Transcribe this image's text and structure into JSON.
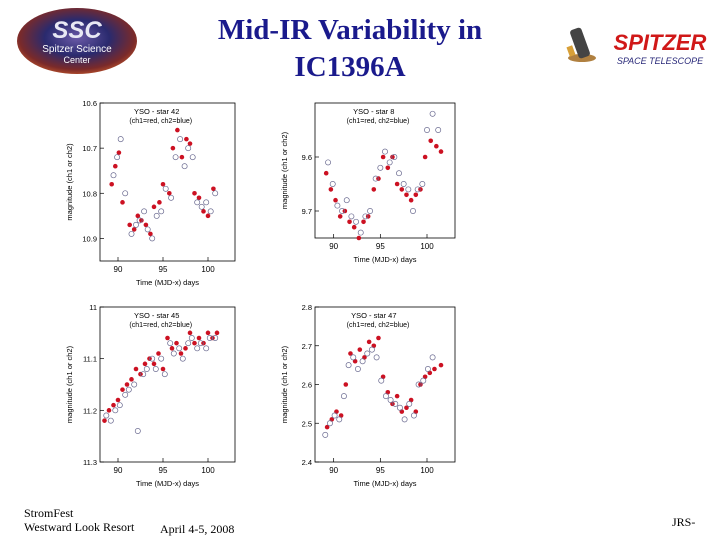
{
  "slide": {
    "title_line1": "Mid-IR Variability in",
    "title_line2": "IC1396A",
    "footer_event": "StromFest",
    "footer_venue": "Westward Look Resort",
    "footer_dates": "April 4-5, 2008",
    "footer_author": "JRS-"
  },
  "logos": {
    "ssc_abbrev": "SSC",
    "ssc_line1": "Spitzer Science",
    "ssc_line2": "Center",
    "spitzer_name": "SPITZER",
    "spitzer_sub": "SPACE TELESCOPE"
  },
  "colors": {
    "title": "#1a1a8c",
    "ch1": "#cc1122",
    "ch2": "#6a6a90"
  },
  "chart_data": [
    {
      "type": "scatter",
      "title": "YSO - star 42",
      "legend_note": "(ch1=red, ch2=blue)",
      "xlabel": "Time (MJD-x) days",
      "ylabel": "magnitude (ch1 or ch2)",
      "xlim": [
        88,
        103
      ],
      "ylim": [
        10.6,
        10.95
      ],
      "y_inverted": true,
      "xticks": [
        90,
        95,
        100
      ],
      "xtick_labels": [
        "90",
        "95",
        "100"
      ],
      "yticks": [
        10.6,
        10.7,
        10.8,
        10.9
      ],
      "ytick_labels": [
        "10.6",
        "10.7",
        "10.8",
        "10.9"
      ],
      "series": [
        {
          "name": "ch1",
          "x": [
            89.3,
            89.7,
            90.1,
            90.5,
            91.3,
            91.8,
            92.2,
            92.6,
            93.1,
            93.6,
            94.0,
            94.6,
            95.0,
            95.7,
            96.1,
            96.6,
            97.1,
            97.6,
            98.0,
            98.5,
            99.0,
            99.5,
            100.0,
            100.6
          ],
          "y": [
            10.78,
            10.74,
            10.71,
            10.82,
            10.87,
            10.88,
            10.85,
            10.86,
            10.87,
            10.89,
            10.83,
            10.82,
            10.78,
            10.8,
            10.7,
            10.66,
            10.72,
            10.68,
            10.69,
            10.8,
            10.81,
            10.84,
            10.85,
            10.79
          ]
        },
        {
          "name": "ch2",
          "x": [
            89.5,
            89.9,
            90.3,
            90.8,
            91.5,
            92.0,
            92.4,
            92.9,
            93.3,
            93.8,
            94.3,
            94.8,
            95.3,
            95.9,
            96.4,
            96.9,
            97.4,
            97.8,
            98.3,
            98.8,
            99.3,
            99.8,
            100.3,
            100.8
          ],
          "y": [
            10.76,
            10.72,
            10.68,
            10.8,
            10.89,
            10.87,
            10.86,
            10.84,
            10.88,
            10.9,
            10.85,
            10.84,
            10.79,
            10.81,
            10.72,
            10.68,
            10.74,
            10.7,
            10.72,
            10.82,
            10.83,
            10.82,
            10.84,
            10.8
          ]
        }
      ]
    },
    {
      "type": "scatter",
      "title": "YSO - star 8",
      "legend_note": "(ch1=red, ch2=blue)",
      "xlabel": "Time (MJD-x) days",
      "ylabel": "magnitude (ch1 or ch2)",
      "xlim": [
        88,
        103
      ],
      "ylim": [
        9.5,
        9.75
      ],
      "y_inverted": true,
      "xticks": [
        90,
        95,
        100
      ],
      "xtick_labels": [
        "90",
        "95",
        "100"
      ],
      "yticks": [
        9.6,
        9.7
      ],
      "ytick_labels": [
        "9.6",
        "9.7"
      ],
      "series": [
        {
          "name": "ch1",
          "x": [
            89.2,
            89.7,
            90.2,
            90.7,
            91.2,
            91.7,
            92.2,
            92.7,
            93.2,
            93.7,
            94.3,
            94.8,
            95.3,
            95.8,
            96.3,
            96.8,
            97.3,
            97.8,
            98.3,
            98.8,
            99.3,
            99.8,
            100.4,
            101.0,
            101.5
          ],
          "y": [
            9.63,
            9.66,
            9.68,
            9.71,
            9.7,
            9.72,
            9.73,
            9.75,
            9.72,
            9.71,
            9.66,
            9.64,
            9.6,
            9.62,
            9.6,
            9.65,
            9.66,
            9.67,
            9.68,
            9.67,
            9.66,
            9.6,
            9.57,
            9.58,
            9.59
          ]
        },
        {
          "name": "ch2",
          "x": [
            89.4,
            89.9,
            90.4,
            90.9,
            91.4,
            91.9,
            92.4,
            92.9,
            93.4,
            93.9,
            94.5,
            95.0,
            95.5,
            96.0,
            96.5,
            97.0,
            97.5,
            98.0,
            98.5,
            99.0,
            99.5,
            100.0,
            100.6,
            101.2
          ],
          "y": [
            9.61,
            9.65,
            9.69,
            9.7,
            9.68,
            9.71,
            9.72,
            9.74,
            9.71,
            9.7,
            9.64,
            9.62,
            9.59,
            9.61,
            9.6,
            9.63,
            9.65,
            9.66,
            9.7,
            9.66,
            9.65,
            9.55,
            9.52,
            9.55
          ]
        }
      ]
    },
    {
      "type": "scatter",
      "title": "YSO - star 45",
      "legend_note": "(ch1=red, ch2=blue)",
      "xlabel": "Time (MJD-x) days",
      "ylabel": "magnitude (ch1 or ch2)",
      "xlim": [
        88,
        103
      ],
      "ylim": [
        11.0,
        11.3
      ],
      "y_inverted": true,
      "xticks": [
        90,
        95,
        100
      ],
      "xtick_labels": [
        "90",
        "95",
        "100"
      ],
      "yticks": [
        11.0,
        11.1,
        11.2,
        11.3
      ],
      "ytick_labels": [
        "11",
        "11.1",
        "11.2",
        "11.3"
      ],
      "series": [
        {
          "name": "ch1",
          "x": [
            88.5,
            89.0,
            89.5,
            90.0,
            90.5,
            91.0,
            91.5,
            92.0,
            92.5,
            93.0,
            93.5,
            94.0,
            94.5,
            95.0,
            95.5,
            96.0,
            96.5,
            97.0,
            97.5,
            98.0,
            98.5,
            99.0,
            99.5,
            100.0,
            100.5,
            101.0
          ],
          "y": [
            11.22,
            11.2,
            11.19,
            11.18,
            11.16,
            11.15,
            11.14,
            11.12,
            11.13,
            11.11,
            11.1,
            11.11,
            11.09,
            11.12,
            11.06,
            11.08,
            11.07,
            11.09,
            11.08,
            11.05,
            11.07,
            11.06,
            11.07,
            11.05,
            11.06,
            11.05
          ]
        },
        {
          "name": "ch2",
          "x": [
            88.7,
            89.2,
            89.7,
            90.2,
            90.8,
            91.2,
            91.8,
            92.2,
            92.8,
            93.2,
            93.8,
            94.2,
            94.8,
            95.2,
            95.8,
            96.2,
            96.8,
            97.2,
            97.8,
            98.2,
            98.8,
            99.2,
            99.8,
            100.2,
            100.8
          ],
          "y": [
            11.21,
            11.22,
            11.2,
            11.19,
            11.17,
            11.16,
            11.15,
            11.24,
            11.13,
            11.12,
            11.1,
            11.12,
            11.1,
            11.13,
            11.07,
            11.09,
            11.08,
            11.1,
            11.07,
            11.06,
            11.08,
            11.07,
            11.08,
            11.06,
            11.06
          ]
        }
      ]
    },
    {
      "type": "scatter",
      "title": "YSO - star 47",
      "legend_note": "(ch1=red, ch2=blue)",
      "xlabel": "Time (MJD-x) days",
      "ylabel": "magnitude (ch1 or ch2)",
      "xlim": [
        88,
        103
      ],
      "ylim": [
        2.4,
        2.8
      ],
      "y_inverted": false,
      "xticks": [
        90,
        95,
        100
      ],
      "xtick_labels": [
        "90",
        "95",
        "100"
      ],
      "yticks": [
        2.4,
        2.5,
        2.6,
        2.7,
        2.8
      ],
      "ytick_labels": [
        "2.4",
        "2.5",
        "2.6",
        "2.7",
        "2.8"
      ],
      "series": [
        {
          "name": "ch1",
          "x": [
            89.3,
            89.8,
            90.3,
            90.8,
            91.3,
            91.8,
            92.3,
            92.8,
            93.3,
            93.8,
            94.3,
            94.8,
            95.3,
            95.8,
            96.3,
            96.8,
            97.3,
            97.8,
            98.3,
            98.8,
            99.3,
            99.8,
            100.3,
            100.8,
            101.5
          ],
          "y": [
            2.49,
            2.51,
            2.53,
            2.52,
            2.6,
            2.68,
            2.66,
            2.69,
            2.67,
            2.71,
            2.7,
            2.72,
            2.62,
            2.58,
            2.55,
            2.57,
            2.53,
            2.54,
            2.56,
            2.53,
            2.6,
            2.62,
            2.63,
            2.64,
            2.65
          ]
        },
        {
          "name": "ch2",
          "x": [
            89.1,
            89.6,
            90.1,
            90.6,
            91.1,
            91.6,
            92.1,
            92.6,
            93.1,
            93.6,
            94.1,
            94.6,
            95.1,
            95.6,
            96.1,
            96.6,
            97.1,
            97.6,
            98.1,
            98.6,
            99.1,
            99.6,
            100.1,
            100.6
          ],
          "y": [
            2.47,
            2.5,
            2.52,
            2.51,
            2.57,
            2.65,
            2.67,
            2.64,
            2.66,
            2.68,
            2.69,
            2.67,
            2.61,
            2.57,
            2.56,
            2.55,
            2.54,
            2.51,
            2.55,
            2.52,
            2.6,
            2.61,
            2.64,
            2.67
          ]
        }
      ]
    }
  ]
}
